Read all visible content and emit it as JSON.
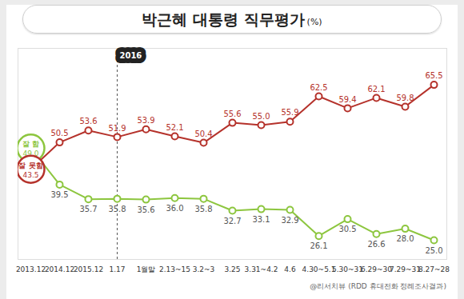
{
  "chart_data": {
    "type": "line",
    "title": "박근혜 대통령 직무평가",
    "subtitle": "(%)",
    "caption": "@리서치뷰 (RDD 휴대전화 정례조사결과)",
    "categories": [
      "2013.12",
      "2014.12",
      "2015.12",
      "1.17",
      "1월말",
      "2.13~15",
      "3.2~3",
      "3.25",
      "3.31~4.2",
      "4.6",
      "4.30~5.1",
      "5.30~31",
      "6.29~30",
      "7.29~31",
      "8.27~28"
    ],
    "series": [
      {
        "name": "잘 함",
        "color": "#8dc63f",
        "marker": "circle",
        "values": [
          49.0,
          39.5,
          35.7,
          35.8,
          35.6,
          36.0,
          35.8,
          32.7,
          33.1,
          32.9,
          26.1,
          30.5,
          26.6,
          28.0,
          25.0
        ],
        "value_labels": [
          "49.0",
          "39.5",
          "35.7",
          "35.8",
          "35.6",
          "36.0",
          "35.8",
          "32.7",
          "33.1",
          "32.9",
          "26.1",
          "30.5",
          "26.6",
          "28.0",
          "25.0"
        ]
      },
      {
        "name": "잘 못함",
        "color": "#b5322b",
        "marker": "circle",
        "values": [
          43.5,
          50.5,
          53.6,
          51.9,
          53.9,
          52.1,
          50.4,
          55.6,
          55.0,
          55.9,
          62.5,
          59.4,
          62.1,
          59.8,
          65.5
        ],
        "value_labels": [
          "43.5",
          "50.5",
          "53.6",
          "51.9",
          "53.9",
          "52.1",
          "50.4",
          "55.6",
          "55.0",
          "55.9",
          "62.5",
          "59.4",
          "62.1",
          "59.8",
          "65.5"
        ]
      }
    ],
    "ylim": [
      20,
      75
    ],
    "yticks": [],
    "tick_labels": "x",
    "data_labels": true,
    "annotations": [
      {
        "text": "2016",
        "x": "1.17"
      }
    ]
  }
}
